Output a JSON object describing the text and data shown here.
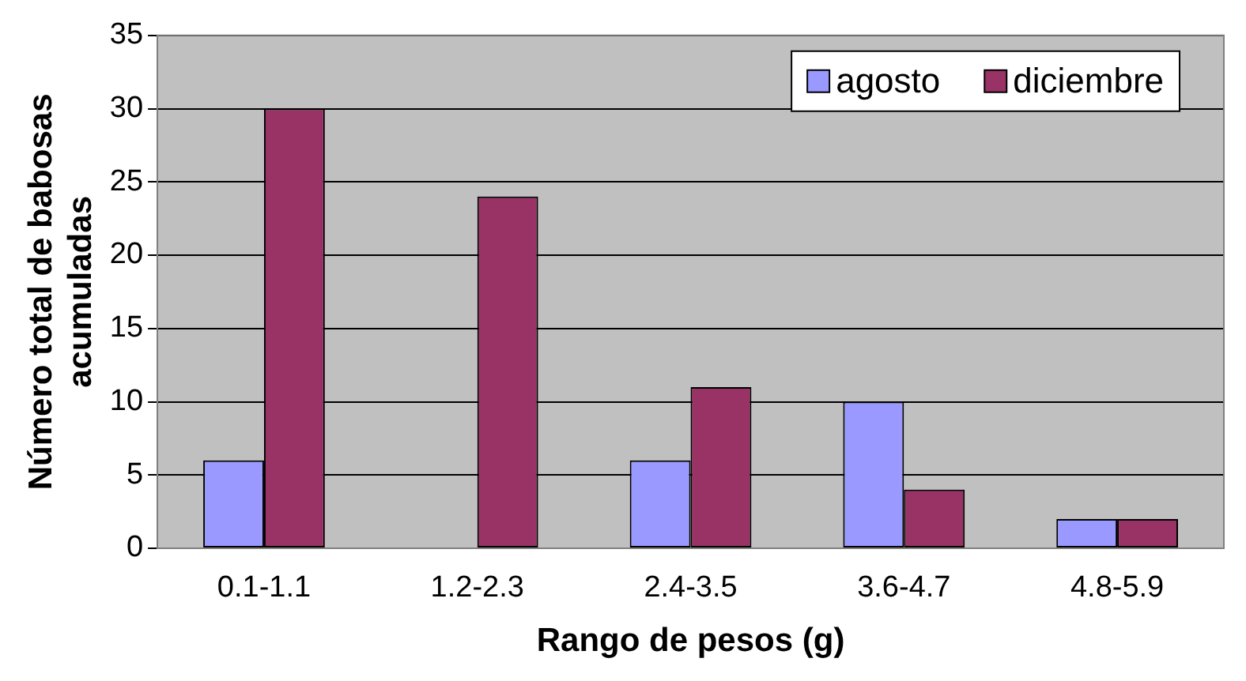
{
  "chart_data": {
    "type": "bar",
    "xlabel": "Rango de pesos (g)",
    "ylabel": "Número total de babosas acumuladas",
    "categories": [
      "0.1-1.1",
      "1.2-2.3",
      "2.4-3.5",
      "3.6-4.7",
      "4.8-5.9"
    ],
    "series": [
      {
        "name": "agosto",
        "color": "#9999ff",
        "values": [
          6,
          0,
          6,
          10,
          2
        ]
      },
      {
        "name": "diciembre",
        "color": "#993366",
        "values": [
          30,
          24,
          11,
          4,
          2
        ]
      }
    ],
    "ylim": [
      0,
      35
    ],
    "yticks": [
      0,
      5,
      10,
      15,
      20,
      25,
      30,
      35
    ],
    "grid": "y",
    "legend": "top right"
  }
}
